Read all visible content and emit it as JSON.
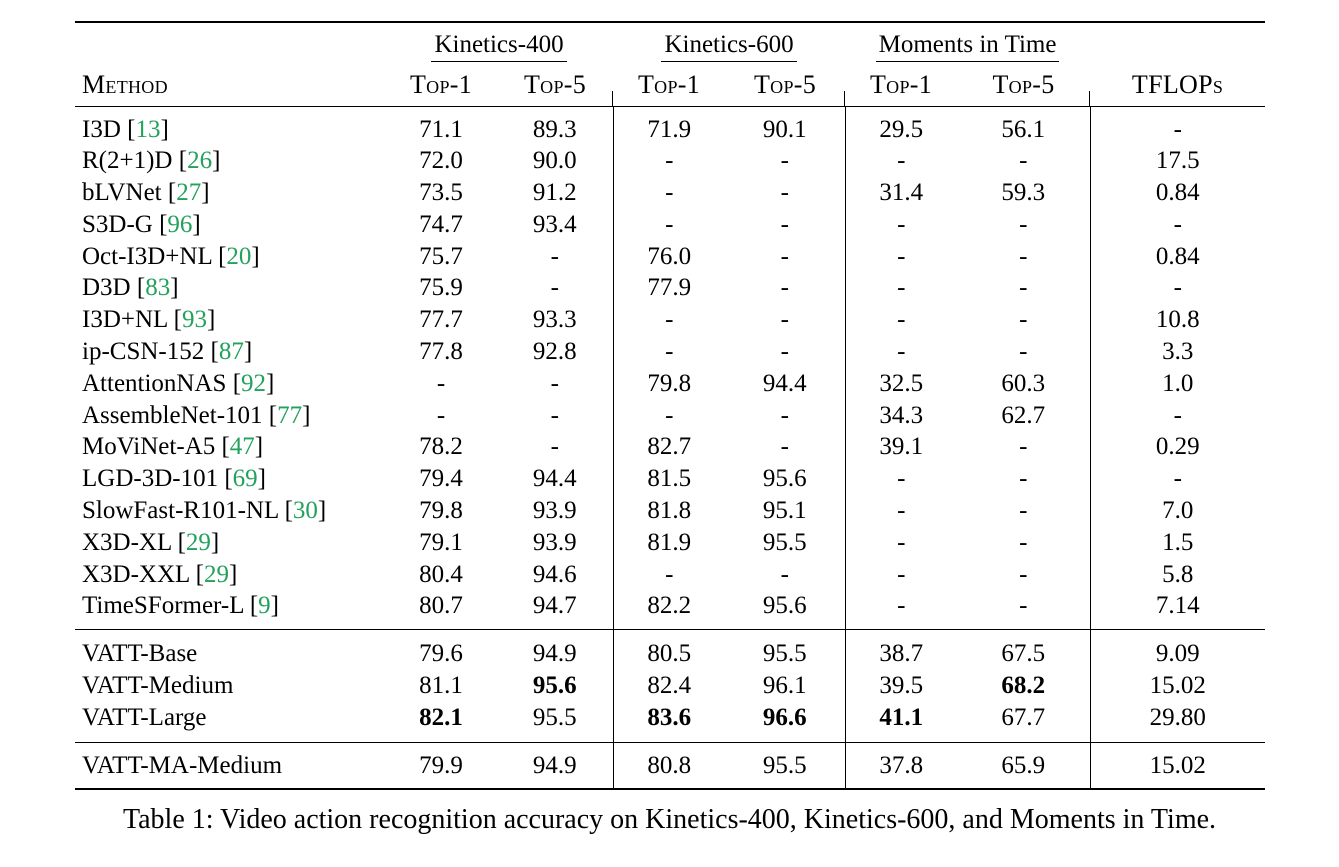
{
  "table": {
    "caption": "Table 1: Video action recognition accuracy on Kinetics-400, Kinetics-600, and Moments in Time.",
    "colors": {
      "citation_green": "#23a15c",
      "text": "#000000",
      "background": "#ffffff"
    },
    "header": {
      "method_label": "Method",
      "tflops_label": "TFLOPs",
      "groups": [
        {
          "label": "Kinetics-400"
        },
        {
          "label": "Kinetics-600"
        },
        {
          "label": "Moments in Time"
        }
      ],
      "sub_labels": [
        "Top-1",
        "Top-5",
        "Top-1",
        "Top-5",
        "Top-1",
        "Top-5"
      ]
    },
    "sections": {
      "main": [
        {
          "method": "I3D",
          "cite": "13",
          "values": [
            "71.1",
            "89.3",
            "71.9",
            "90.1",
            "29.5",
            "56.1",
            "-"
          ],
          "bold": []
        },
        {
          "method": "R(2+1)D",
          "cite": "26",
          "values": [
            "72.0",
            "90.0",
            "-",
            "-",
            "-",
            "-",
            "17.5"
          ],
          "bold": []
        },
        {
          "method": "bLVNet",
          "cite": "27",
          "values": [
            "73.5",
            "91.2",
            "-",
            "-",
            "31.4",
            "59.3",
            "0.84"
          ],
          "bold": []
        },
        {
          "method": "S3D-G",
          "cite": "96",
          "values": [
            "74.7",
            "93.4",
            "-",
            "-",
            "-",
            "-",
            "-"
          ],
          "bold": []
        },
        {
          "method": "Oct-I3D+NL",
          "cite": "20",
          "values": [
            "75.7",
            "-",
            "76.0",
            "-",
            "-",
            "-",
            "0.84"
          ],
          "bold": []
        },
        {
          "method": "D3D",
          "cite": "83",
          "values": [
            "75.9",
            "-",
            "77.9",
            "-",
            "-",
            "-",
            "-"
          ],
          "bold": []
        },
        {
          "method": "I3D+NL",
          "cite": "93",
          "values": [
            "77.7",
            "93.3",
            "-",
            "-",
            "-",
            "-",
            "10.8"
          ],
          "bold": []
        },
        {
          "method": "ip-CSN-152",
          "cite": "87",
          "values": [
            "77.8",
            "92.8",
            "-",
            "-",
            "-",
            "-",
            "3.3"
          ],
          "bold": []
        },
        {
          "method": "AttentionNAS",
          "cite": "92",
          "values": [
            "-",
            "-",
            "79.8",
            "94.4",
            "32.5",
            "60.3",
            "1.0"
          ],
          "bold": []
        },
        {
          "method": "AssembleNet-101",
          "cite": "77",
          "values": [
            "-",
            "-",
            "-",
            "-",
            "34.3",
            "62.7",
            "-"
          ],
          "bold": []
        },
        {
          "method": "MoViNet-A5",
          "cite": "47",
          "values": [
            "78.2",
            "-",
            "82.7",
            "-",
            "39.1",
            "-",
            "0.29"
          ],
          "bold": []
        },
        {
          "method": "LGD-3D-101",
          "cite": "69",
          "values": [
            "79.4",
            "94.4",
            "81.5",
            "95.6",
            "-",
            "-",
            "-"
          ],
          "bold": []
        },
        {
          "method": "SlowFast-R101-NL",
          "cite": "30",
          "values": [
            "79.8",
            "93.9",
            "81.8",
            "95.1",
            "-",
            "-",
            "7.0"
          ],
          "bold": []
        },
        {
          "method": "X3D-XL",
          "cite": "29",
          "values": [
            "79.1",
            "93.9",
            "81.9",
            "95.5",
            "-",
            "-",
            "1.5"
          ],
          "bold": []
        },
        {
          "method": "X3D-XXL",
          "cite": "29",
          "values": [
            "80.4",
            "94.6",
            "-",
            "-",
            "-",
            "-",
            "5.8"
          ],
          "bold": []
        },
        {
          "method": "TimeSFormer-L",
          "cite": "9",
          "values": [
            "80.7",
            "94.7",
            "82.2",
            "95.6",
            "-",
            "-",
            "7.14"
          ],
          "bold": []
        }
      ],
      "vatt": [
        {
          "method": "VATT-Base",
          "cite": null,
          "values": [
            "79.6",
            "94.9",
            "80.5",
            "95.5",
            "38.7",
            "67.5",
            "9.09"
          ],
          "bold": []
        },
        {
          "method": "VATT-Medium",
          "cite": null,
          "values": [
            "81.1",
            "95.6",
            "82.4",
            "96.1",
            "39.5",
            "68.2",
            "15.02"
          ],
          "bold": [
            1,
            5
          ]
        },
        {
          "method": "VATT-Large",
          "cite": null,
          "values": [
            "82.1",
            "95.5",
            "83.6",
            "96.6",
            "41.1",
            "67.7",
            "29.80"
          ],
          "bold": [
            0,
            2,
            3,
            4
          ]
        }
      ],
      "vatt_ma": [
        {
          "method": "VATT-MA-Medium",
          "cite": null,
          "values": [
            "79.9",
            "94.9",
            "80.8",
            "95.5",
            "37.8",
            "65.9",
            "15.02"
          ],
          "bold": []
        }
      ]
    }
  }
}
